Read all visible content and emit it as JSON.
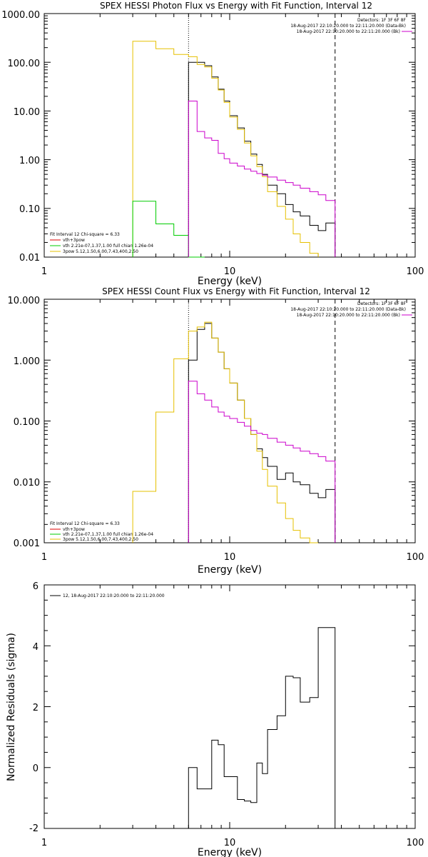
{
  "chart_data": [
    {
      "type": "line",
      "title": "SPEX HESSI Photon Flux vs Energy with Fit Function, Interval 12",
      "xlabel": "Energy (keV)",
      "ylabel": "",
      "xscale": "log",
      "yscale": "log",
      "xlim": [
        1,
        100
      ],
      "ylim": [
        0.01,
        1000
      ],
      "x_tick_labels": [
        "1",
        "10",
        "100"
      ],
      "y_tick_labels": [
        "0.01",
        "0.10",
        "1.00",
        "10.00",
        "100.00",
        "1000.00"
      ],
      "info": {
        "lines": [
          "Detectors: 1F 3F 6F 8F",
          "18-Aug-2017 22:10:20.000 to 22:11:20.000 (Data-Bk)",
          "18-Aug-2017 22:10:20.000 to 22:11:20.000 (Bk)"
        ],
        "bk_color": "#cc00cc"
      },
      "fit_legend": {
        "header": "Fit Interval 12   Chi-square = 6.33",
        "items": [
          {
            "color": "#dd0000",
            "text": "vth+3pow"
          },
          {
            "color": "#00cc00",
            "text": "vth 2.21e-07,1.37,1.00   full chian 1.26e-04"
          },
          {
            "color": "#e6c000",
            "text": "3pow 5.12,1.50,6.00,7.43,400,2.50"
          }
        ]
      },
      "vlines": [
        {
          "x": 6.0,
          "style": "dotted",
          "color": "#000000"
        },
        {
          "x": 37.0,
          "style": "dashed",
          "color": "#000000"
        }
      ],
      "series": [
        {
          "color": "#000000",
          "bins": [
            6.0,
            6.67,
            7.33,
            8.0,
            8.67,
            9.33,
            10.0,
            11.0,
            12.0,
            13.0,
            14.0,
            15.0,
            16.0,
            18.0,
            20.0,
            22.0,
            24.0,
            27.0,
            30.0,
            33.0,
            37.0
          ],
          "values": [
            100,
            100,
            85,
            50,
            28,
            16,
            8,
            4.5,
            2.4,
            1.3,
            0.8,
            0.5,
            0.3,
            0.2,
            0.12,
            0.085,
            0.07,
            0.045,
            0.035,
            0.05
          ]
        },
        {
          "color": "#e6c000",
          "bins": [
            3.0,
            4.0,
            5.0,
            6.0,
            6.67,
            7.33,
            8.0,
            8.67,
            9.33,
            10.0,
            11.0,
            12.0,
            13.0,
            14.0,
            15.0,
            16.0,
            18.0,
            20.0,
            22.0,
            24.0,
            27.0,
            30.0
          ],
          "values": [
            270,
            190,
            145,
            130,
            90,
            80,
            47,
            27,
            15,
            7.5,
            4.2,
            2.2,
            1.2,
            0.72,
            0.45,
            0.22,
            0.11,
            0.06,
            0.03,
            0.02,
            0.012
          ]
        },
        {
          "color": "#00cc00",
          "bins": [
            3.0,
            4.0,
            5.0,
            6.0,
            6.67,
            7.33
          ],
          "values": [
            0.14,
            0.048,
            0.028,
            0.01,
            0.005
          ]
        },
        {
          "color": "#cc00cc",
          "bins": [
            6.0,
            6.67,
            7.33,
            8.0,
            8.67,
            9.33,
            10.0,
            11.0,
            12.0,
            13.0,
            14.0,
            15.0,
            16.0,
            18.0,
            20.0,
            22.0,
            24.0,
            27.0,
            30.0,
            33.0,
            37.0
          ],
          "values": [
            16,
            3.8,
            2.8,
            2.5,
            1.35,
            1.05,
            0.85,
            0.74,
            0.64,
            0.58,
            0.52,
            0.48,
            0.44,
            0.38,
            0.34,
            0.3,
            0.26,
            0.22,
            0.19,
            0.145
          ]
        }
      ]
    },
    {
      "type": "line",
      "title": "SPEX HESSI Count Flux vs Energy with Fit Function, Interval 12",
      "xlabel": "Energy (keV)",
      "ylabel": "",
      "xscale": "log",
      "yscale": "log",
      "xlim": [
        1,
        100
      ],
      "ylim": [
        0.001,
        10
      ],
      "x_tick_labels": [
        "1",
        "10",
        "100"
      ],
      "y_tick_labels": [
        "0.001",
        "0.010",
        "0.100",
        "1.000",
        "10.000"
      ],
      "info": {
        "lines": [
          "Detectors: 1F 3F 6F 8F",
          "18-Aug-2017 22:10:20.000 to 22:11:20.000 (Data-Bk)",
          "18-Aug-2017 22:10:20.000 to 22:11:20.000 (Bk)"
        ],
        "bk_color": "#cc00cc"
      },
      "fit_legend": {
        "header": "Fit Interval 12   Chi-square = 6.33",
        "items": [
          {
            "color": "#dd0000",
            "text": "vth+3pow"
          },
          {
            "color": "#00cc00",
            "text": "vth 2.21e-07,1.37,1.00   full chian 1.26e-04"
          },
          {
            "color": "#e6c000",
            "text": "3pow 5.12,1.50,6.00,7.43,400,2.50"
          }
        ]
      },
      "vlines": [
        {
          "x": 6.0,
          "style": "dotted",
          "color": "#000000"
        },
        {
          "x": 37.0,
          "style": "dashed",
          "color": "#000000"
        }
      ],
      "series": [
        {
          "color": "#000000",
          "bins": [
            6.0,
            6.67,
            7.33,
            8.0,
            8.67,
            9.33,
            10.0,
            11.0,
            12.0,
            13.0,
            14.0,
            15.0,
            16.0,
            18.0,
            20.0,
            22.0,
            24.0,
            27.0,
            30.0,
            33.0,
            37.0
          ],
          "values": [
            1.0,
            3.2,
            4.0,
            2.3,
            1.35,
            0.72,
            0.42,
            0.22,
            0.11,
            0.06,
            0.035,
            0.025,
            0.018,
            0.011,
            0.014,
            0.01,
            0.009,
            0.0065,
            0.0055,
            0.0075
          ]
        },
        {
          "color": "#e6c000",
          "bins": [
            3.0,
            4.0,
            5.0,
            6.0,
            6.67,
            7.33,
            8.0,
            8.67,
            9.33,
            10.0,
            11.0,
            12.0,
            13.0,
            14.0,
            15.0,
            16.0,
            18.0,
            20.0,
            22.0,
            24.0,
            27.0,
            30.0
          ],
          "values": [
            0.007,
            0.14,
            1.05,
            3.0,
            3.5,
            4.2,
            2.3,
            1.35,
            0.72,
            0.42,
            0.22,
            0.11,
            0.06,
            0.032,
            0.016,
            0.0085,
            0.0045,
            0.0025,
            0.0016,
            0.0012,
            0.0009
          ]
        },
        {
          "color": "#cc00cc",
          "bins": [
            6.0,
            6.67,
            7.33,
            8.0,
            8.67,
            9.33,
            10.0,
            11.0,
            12.0,
            13.0,
            14.0,
            15.0,
            16.0,
            18.0,
            20.0,
            22.0,
            24.0,
            27.0,
            30.0,
            33.0,
            37.0
          ],
          "values": [
            0.45,
            0.28,
            0.22,
            0.17,
            0.14,
            0.12,
            0.11,
            0.095,
            0.082,
            0.07,
            0.063,
            0.06,
            0.052,
            0.045,
            0.04,
            0.036,
            0.032,
            0.029,
            0.026,
            0.022
          ]
        }
      ]
    },
    {
      "type": "line",
      "title": "",
      "xlabel": "Energy (keV)",
      "ylabel": "Normalized Residuals (sigma)",
      "xscale": "log",
      "yscale": "linear",
      "xlim": [
        1,
        100
      ],
      "ylim": [
        -2,
        6
      ],
      "x_tick_labels": [
        "1",
        "10",
        "100"
      ],
      "y_tick_labels": [
        "-2",
        "0",
        "2",
        "4",
        "6"
      ],
      "legend_text": "12, 18-Aug-2017 22:10:20.000 to 22:11:20.000",
      "series": [
        {
          "color": "#000000",
          "bins": [
            6.0,
            6.67,
            7.33,
            8.0,
            8.67,
            9.33,
            10.0,
            11.0,
            12.0,
            13.0,
            14.0,
            15.0,
            16.0,
            18.0,
            20.0,
            22.0,
            24.0,
            27.0,
            30.0,
            33.0,
            37.0
          ],
          "values": [
            0.0,
            -0.7,
            -0.7,
            0.9,
            0.75,
            -0.3,
            -0.3,
            -1.05,
            -1.1,
            -1.15,
            0.15,
            -0.2,
            1.25,
            1.7,
            3.0,
            2.95,
            2.15,
            2.3,
            4.6,
            4.6
          ]
        }
      ]
    }
  ]
}
